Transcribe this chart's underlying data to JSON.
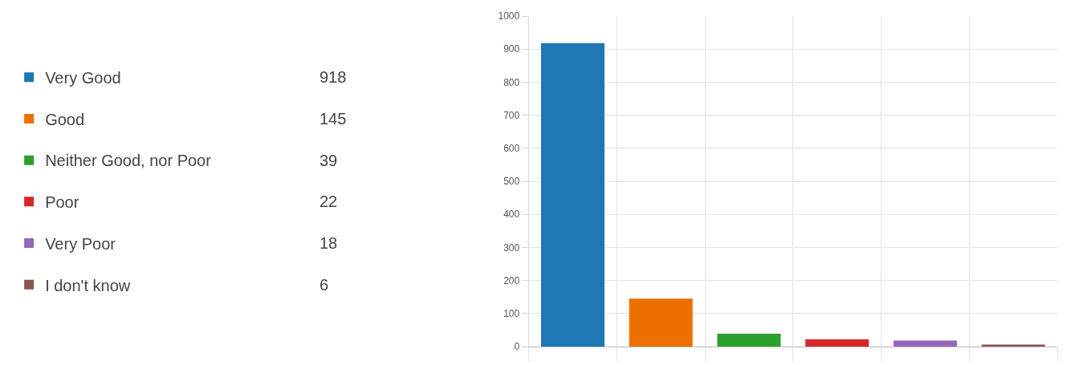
{
  "chart_data": {
    "type": "bar",
    "categories": [
      null,
      null,
      null,
      null,
      null,
      null
    ],
    "series": [
      {
        "name": "Very Good",
        "color": "#1f77b4",
        "values": [
          918,
          null,
          null,
          null,
          null,
          null
        ]
      },
      {
        "name": "Good",
        "color": "#ec7000",
        "values": [
          null,
          145,
          null,
          null,
          null,
          null
        ]
      },
      {
        "name": "Neither Good, nor Poor",
        "color": "#2ca02c",
        "values": [
          null,
          null,
          39,
          null,
          null,
          null
        ]
      },
      {
        "name": "Poor",
        "color": "#d62728",
        "values": [
          null,
          null,
          null,
          22,
          null,
          null
        ]
      },
      {
        "name": "Very Poor",
        "color": "#9467bd",
        "values": [
          null,
          null,
          null,
          null,
          18,
          null
        ]
      },
      {
        "name": "I don't know",
        "color": "#8c564b",
        "values": [
          null,
          null,
          null,
          null,
          null,
          6
        ]
      }
    ],
    "annotations": [
      "918",
      "145",
      "39",
      "22",
      "18",
      "6"
    ],
    "ylim": [
      0,
      1000
    ],
    "yticks": [
      0,
      100,
      200,
      300,
      400,
      500,
      600,
      700,
      800,
      900,
      1000
    ],
    "grid": true,
    "legend": "left",
    "tick_labels": "y"
  }
}
